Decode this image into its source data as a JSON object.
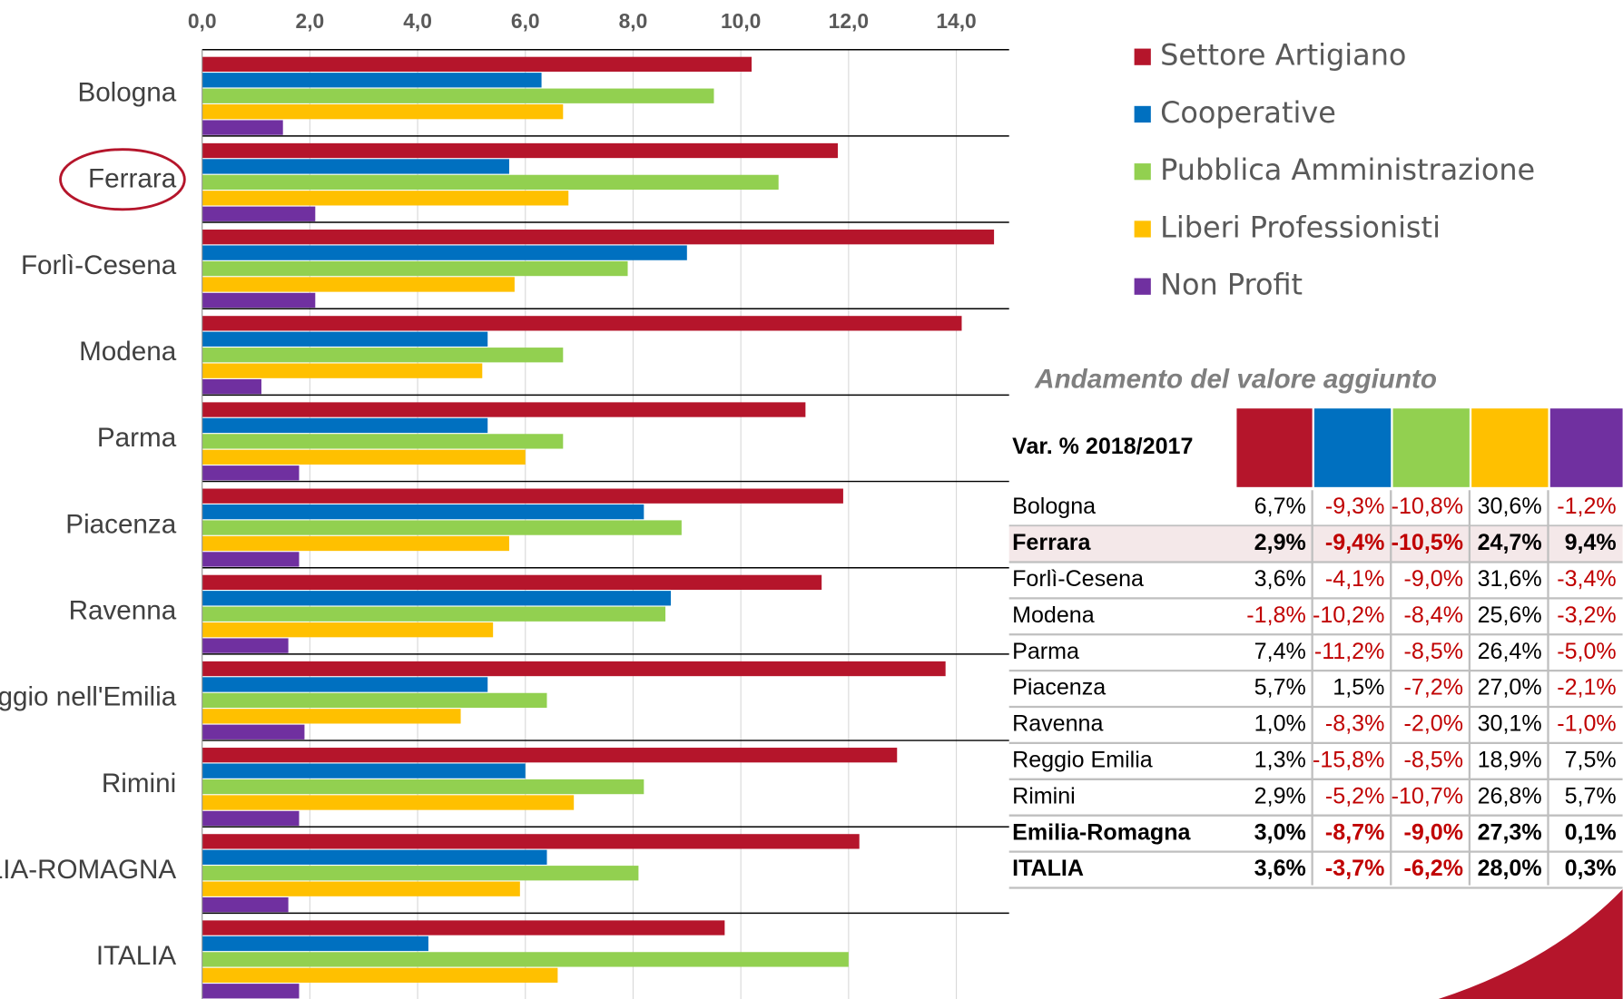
{
  "chart_data": {
    "type": "bar",
    "orientation": "horizontal",
    "categories": [
      "Bologna",
      "Ferrara",
      "Forlì-Cesena",
      "Modena",
      "Parma",
      "Piacenza",
      "Ravenna",
      "Reggio nell'Emilia",
      "Rimini",
      "EMILIA-ROMAGNA",
      "ITALIA"
    ],
    "series": [
      {
        "name": "Settore Artigiano",
        "color": "#b5152b",
        "values": [
          10.2,
          11.8,
          14.7,
          14.1,
          11.2,
          11.9,
          11.5,
          13.8,
          12.9,
          12.2,
          9.7
        ]
      },
      {
        "name": "Cooperative",
        "color": "#0070c0",
        "values": [
          6.3,
          5.7,
          9.0,
          5.3,
          5.3,
          8.2,
          8.7,
          5.3,
          6.0,
          6.4,
          4.2
        ]
      },
      {
        "name": "Pubblica Amministrazione",
        "color": "#92d050",
        "values": [
          9.5,
          10.7,
          7.9,
          6.7,
          6.7,
          8.9,
          8.6,
          6.4,
          8.2,
          8.1,
          12.0
        ]
      },
      {
        "name": "Liberi Professionisti",
        "color": "#ffc000",
        "values": [
          6.7,
          6.8,
          5.8,
          5.2,
          6.0,
          5.7,
          5.4,
          4.8,
          6.9,
          5.9,
          6.6
        ]
      },
      {
        "name": "Non Profit",
        "color": "#7030a0",
        "values": [
          1.5,
          2.1,
          2.1,
          1.1,
          1.8,
          1.8,
          1.6,
          1.9,
          1.8,
          1.6,
          1.8
        ]
      }
    ],
    "xlim": [
      0,
      15
    ],
    "xticks": [
      {
        "value": 0,
        "label": "0,0"
      },
      {
        "value": 2,
        "label": "2,0"
      },
      {
        "value": 4,
        "label": "4,0"
      },
      {
        "value": 6,
        "label": "6,0"
      },
      {
        "value": 8,
        "label": "8,0"
      },
      {
        "value": 10,
        "label": "10,0"
      },
      {
        "value": 12,
        "label": "12,0"
      },
      {
        "value": 14,
        "label": "14,0"
      }
    ],
    "grid": true,
    "legend": "upper right",
    "highlighted_category": "Ferrara"
  },
  "table": {
    "title": "Andamento del valore aggiunto",
    "header": "Var. % 2018/2017",
    "rows": [
      {
        "name": "Bologna",
        "cells": [
          "6,7%",
          "-9,3%",
          "-10,8%",
          "30,6%",
          "-1,2%"
        ]
      },
      {
        "name": "Ferrara",
        "cells": [
          "2,9%",
          "-9,4%",
          "-10,5%",
          "24,7%",
          "9,4%"
        ],
        "bold": true,
        "highlight": true
      },
      {
        "name": "Forlì-Cesena",
        "cells": [
          "3,6%",
          "-4,1%",
          "-9,0%",
          "31,6%",
          "-3,4%"
        ]
      },
      {
        "name": "Modena",
        "cells": [
          "-1,8%",
          "-10,2%",
          "-8,4%",
          "25,6%",
          "-3,2%"
        ]
      },
      {
        "name": "Parma",
        "cells": [
          "7,4%",
          "-11,2%",
          "-8,5%",
          "26,4%",
          "-5,0%"
        ]
      },
      {
        "name": "Piacenza",
        "cells": [
          "5,7%",
          "1,5%",
          "-7,2%",
          "27,0%",
          "-2,1%"
        ]
      },
      {
        "name": "Ravenna",
        "cells": [
          "1,0%",
          "-8,3%",
          "-2,0%",
          "30,1%",
          "-1,0%"
        ]
      },
      {
        "name": "Reggio Emilia",
        "cells": [
          "1,3%",
          "-15,8%",
          "-8,5%",
          "18,9%",
          "7,5%"
        ]
      },
      {
        "name": "Rimini",
        "cells": [
          "2,9%",
          "-5,2%",
          "-10,7%",
          "26,8%",
          "5,7%"
        ]
      },
      {
        "name": "Emilia-Romagna",
        "cells": [
          "3,0%",
          "-8,7%",
          "-9,0%",
          "27,3%",
          "0,1%"
        ],
        "bold": true
      },
      {
        "name": "ITALIA",
        "cells": [
          "3,6%",
          "-3,7%",
          "-6,2%",
          "28,0%",
          "0,3%"
        ],
        "bold": true
      }
    ]
  }
}
